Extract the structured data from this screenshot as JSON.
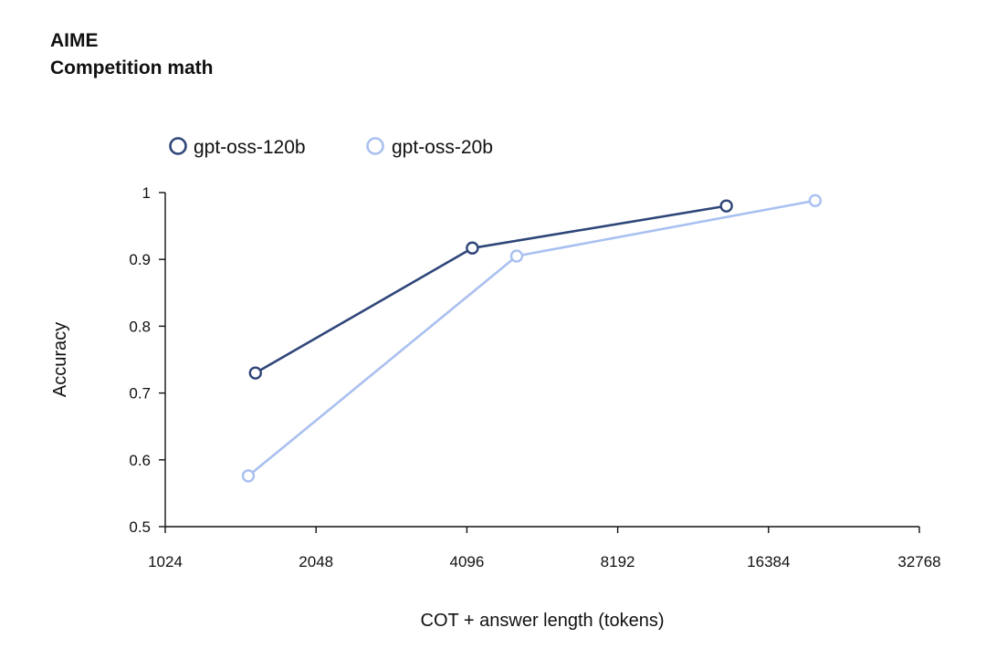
{
  "header": {
    "title": "AIME",
    "subtitle": "Competition math"
  },
  "chart_data": {
    "type": "line",
    "title": "AIME",
    "subtitle": "Competition math",
    "xlabel": "COT + answer length (tokens)",
    "ylabel": "Accuracy",
    "xscale": "log2",
    "xlim": [
      1024,
      32768
    ],
    "ylim": [
      0.5,
      1.0
    ],
    "x_ticks": [
      1024,
      2048,
      4096,
      8192,
      16384,
      32768
    ],
    "x_tick_labels": [
      "1024",
      "2048",
      "4096",
      "8192",
      "16384",
      "32768"
    ],
    "y_ticks": [
      0.5,
      0.6,
      0.7,
      0.8,
      0.9,
      1.0
    ],
    "y_tick_labels": [
      "0.5",
      "0.6",
      "0.7",
      "0.8",
      "0.9",
      "1"
    ],
    "legend_position": "top-left",
    "grid": false,
    "series": [
      {
        "name": "gpt-oss-120b",
        "color": "#2f4679",
        "x": [
          1550,
          4200,
          13500
        ],
        "y": [
          0.73,
          0.917,
          0.98
        ]
      },
      {
        "name": "gpt-oss-20b",
        "color": "#a9c0f0",
        "x": [
          1500,
          5150,
          20300
        ],
        "y": [
          0.576,
          0.905,
          0.988
        ]
      }
    ]
  }
}
